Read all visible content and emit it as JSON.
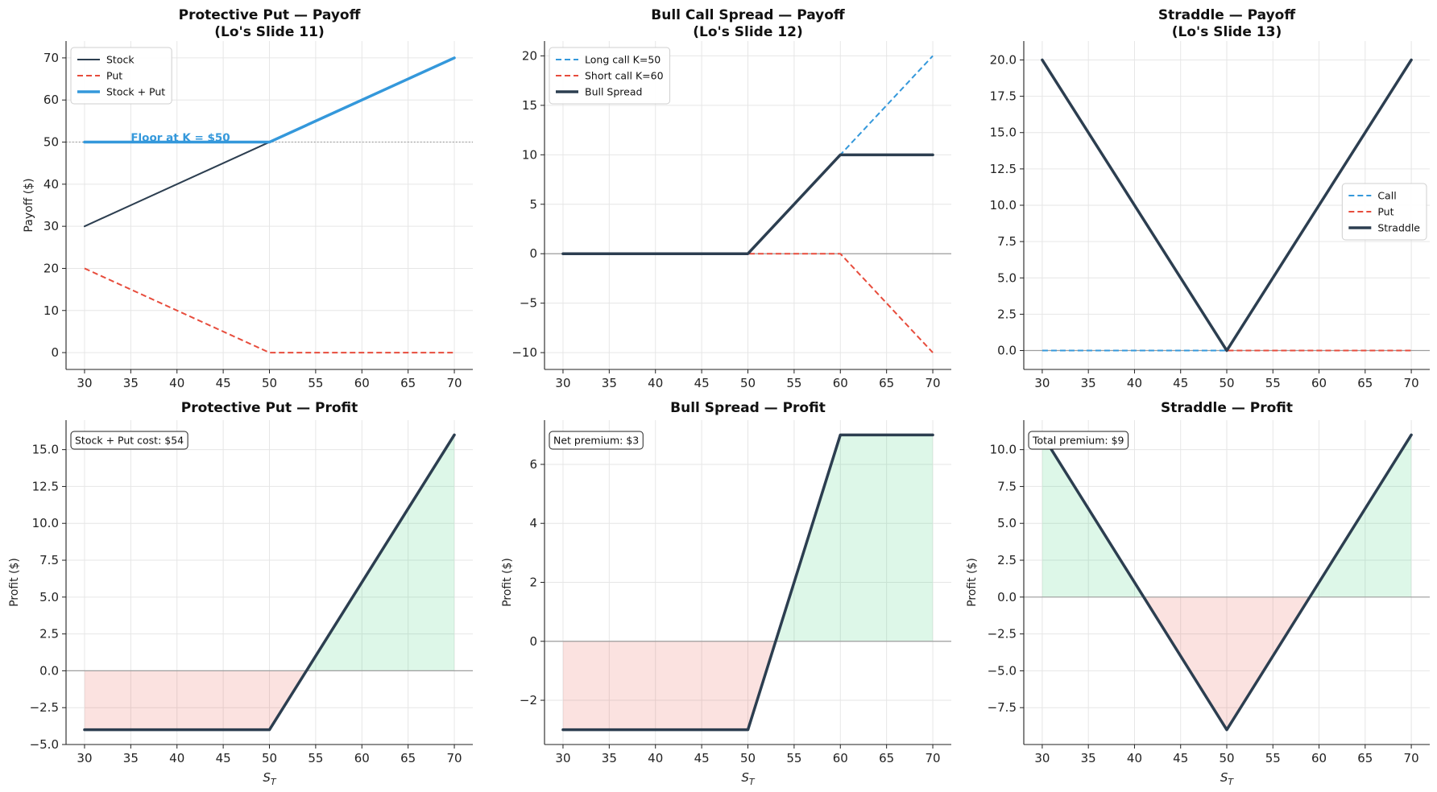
{
  "colors": {
    "stock": "#2c3e50",
    "put": "#e74c3c",
    "call": "#3498db",
    "combo_dark": "#2c3e50",
    "combo_blue": "#3498db",
    "profit_fill": "#2ecc71",
    "loss_fill": "#e74c3c",
    "grid": "#e6e6e6",
    "zero_line": "#9e9e9e"
  },
  "chart_data": [
    {
      "id": "pp_payoff",
      "type": "line",
      "title": "Protective Put — Payoff",
      "subtitle": "(Lo's Slide 11)",
      "xlabel": "",
      "ylabel": "Payoff ($)",
      "xlim": [
        28,
        72
      ],
      "ylim": [
        -4,
        74
      ],
      "xticks": [
        30,
        35,
        40,
        45,
        50,
        55,
        60,
        65,
        70
      ],
      "yticks": [
        0,
        10,
        20,
        30,
        40,
        50,
        60,
        70
      ],
      "grid": true,
      "legend_position": "upper-left",
      "hline": {
        "y": 50,
        "style": "dotted"
      },
      "annotations": [
        {
          "text": "Floor at K = $50",
          "x": 35,
          "y": 50,
          "color": "#3498db"
        }
      ],
      "series": [
        {
          "name": "Stock",
          "x": [
            30,
            70
          ],
          "y": [
            30,
            70
          ],
          "color": "#2c3e50",
          "dash": "solid",
          "width": 2
        },
        {
          "name": "Put",
          "x": [
            30,
            50,
            70
          ],
          "y": [
            20,
            0,
            0
          ],
          "color": "#e74c3c",
          "dash": "dashed",
          "width": 2
        },
        {
          "name": "Stock + Put",
          "x": [
            30,
            50,
            70
          ],
          "y": [
            50,
            50,
            70
          ],
          "color": "#3498db",
          "dash": "solid",
          "width": 3.5
        }
      ]
    },
    {
      "id": "bull_payoff",
      "type": "line",
      "title": "Bull Call Spread — Payoff",
      "subtitle": "(Lo's Slide 12)",
      "xlabel": "",
      "ylabel": "",
      "xlim": [
        28,
        72
      ],
      "ylim": [
        -11.7,
        21.5
      ],
      "xticks": [
        30,
        35,
        40,
        45,
        50,
        55,
        60,
        65,
        70
      ],
      "yticks": [
        -10,
        -5,
        0,
        5,
        10,
        15,
        20
      ],
      "grid": true,
      "legend_position": "upper-left",
      "hline": {
        "y": 0,
        "style": "solid"
      },
      "annotations": [],
      "series": [
        {
          "name": "Long call K=50",
          "x": [
            30,
            50,
            70
          ],
          "y": [
            0,
            0,
            20
          ],
          "color": "#3498db",
          "dash": "dashed",
          "width": 2
        },
        {
          "name": "Short call K=60",
          "x": [
            30,
            60,
            70
          ],
          "y": [
            0,
            0,
            -10
          ],
          "color": "#e74c3c",
          "dash": "dashed",
          "width": 2
        },
        {
          "name": "Bull Spread",
          "x": [
            30,
            50,
            60,
            70
          ],
          "y": [
            0,
            0,
            10,
            10
          ],
          "color": "#2c3e50",
          "dash": "solid",
          "width": 3.5
        }
      ]
    },
    {
      "id": "straddle_payoff",
      "type": "line",
      "title": "Straddle — Payoff",
      "subtitle": "(Lo's Slide 13)",
      "xlabel": "",
      "ylabel": "",
      "xlim": [
        28,
        72
      ],
      "ylim": [
        -1.3,
        21.3
      ],
      "xticks": [
        30,
        35,
        40,
        45,
        50,
        55,
        60,
        65,
        70
      ],
      "yticks": [
        0.0,
        2.5,
        5.0,
        7.5,
        10.0,
        12.5,
        15.0,
        17.5,
        20.0
      ],
      "ytick_decimals": 1,
      "grid": true,
      "legend_position": "center-right",
      "hline": {
        "y": 0,
        "style": "solid"
      },
      "annotations": [],
      "series": [
        {
          "name": "Call",
          "x": [
            30,
            50,
            70
          ],
          "y": [
            0,
            0,
            20
          ],
          "color": "#3498db",
          "dash": "dashed",
          "width": 2
        },
        {
          "name": "Put",
          "x": [
            30,
            50,
            70
          ],
          "y": [
            20,
            0,
            0
          ],
          "color": "#e74c3c",
          "dash": "dashed",
          "width": 2
        },
        {
          "name": "Straddle",
          "x": [
            30,
            50,
            70
          ],
          "y": [
            20,
            0,
            20
          ],
          "color": "#2c3e50",
          "dash": "solid",
          "width": 3.5
        }
      ]
    },
    {
      "id": "pp_profit",
      "type": "area",
      "title": "Protective Put — Profit",
      "subtitle": "",
      "xlabel": "S_T",
      "ylabel": "Profit ($)",
      "xlim": [
        28,
        72
      ],
      "ylim": [
        -5,
        17
      ],
      "xticks": [
        30,
        35,
        40,
        45,
        50,
        55,
        60,
        65,
        70
      ],
      "yticks": [
        -5.0,
        -2.5,
        0.0,
        2.5,
        5.0,
        7.5,
        10.0,
        12.5,
        15.0
      ],
      "ytick_decimals": 1,
      "grid": true,
      "hline": {
        "y": 0,
        "style": "solid"
      },
      "info_box": "Stock + Put cost: $54",
      "series": [
        {
          "name": "Profit",
          "x": [
            30,
            50,
            70
          ],
          "y": [
            -4,
            -4,
            16
          ],
          "color": "#2c3e50",
          "dash": "solid",
          "width": 3.5
        }
      ]
    },
    {
      "id": "bull_profit",
      "type": "area",
      "title": "Bull Spread — Profit",
      "subtitle": "",
      "xlabel": "S_T",
      "ylabel": "Profit ($)",
      "xlim": [
        28,
        72
      ],
      "ylim": [
        -3.5,
        7.5
      ],
      "xticks": [
        30,
        35,
        40,
        45,
        50,
        55,
        60,
        65,
        70
      ],
      "yticks": [
        -2,
        0,
        2,
        4,
        6
      ],
      "grid": true,
      "hline": {
        "y": 0,
        "style": "solid"
      },
      "info_box": "Net premium: $3",
      "series": [
        {
          "name": "Profit",
          "x": [
            30,
            50,
            60,
            70
          ],
          "y": [
            -3,
            -3,
            7,
            7
          ],
          "color": "#2c3e50",
          "dash": "solid",
          "width": 3.5
        }
      ]
    },
    {
      "id": "straddle_profit",
      "type": "area",
      "title": "Straddle — Profit",
      "subtitle": "",
      "xlabel": "S_T",
      "ylabel": "Profit ($)",
      "xlim": [
        28,
        72
      ],
      "ylim": [
        -10,
        12
      ],
      "xticks": [
        30,
        35,
        40,
        45,
        50,
        55,
        60,
        65,
        70
      ],
      "yticks": [
        -7.5,
        -5.0,
        -2.5,
        0.0,
        2.5,
        5.0,
        7.5,
        10.0
      ],
      "ytick_decimals": 1,
      "grid": true,
      "hline": {
        "y": 0,
        "style": "solid"
      },
      "info_box": "Total premium: $9",
      "series": [
        {
          "name": "Profit",
          "x": [
            30,
            50,
            70
          ],
          "y": [
            11,
            -9,
            11
          ],
          "color": "#2c3e50",
          "dash": "solid",
          "width": 3.5
        }
      ]
    }
  ]
}
